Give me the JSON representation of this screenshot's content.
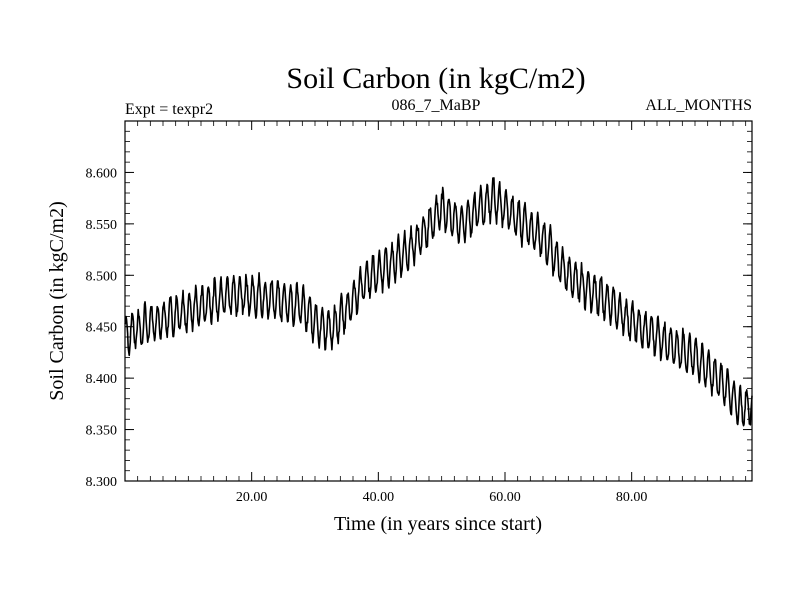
{
  "chart_data": {
    "type": "line",
    "title": "Soil Carbon (in kgC/m2)",
    "header_left": "Expt = texpr2",
    "header_center": "086_7_MaBP",
    "header_right": "ALL_MONTHS",
    "xlabel": "Time (in years since start)",
    "ylabel": "Soil Carbon (in kgC/m2)",
    "xlim": [
      0,
      99
    ],
    "ylim": [
      8.3,
      8.65
    ],
    "x_ticks": [
      20,
      40,
      60,
      80
    ],
    "x_tick_labels": [
      "20.00",
      "40.00",
      "60.00",
      "80.00"
    ],
    "y_ticks": [
      8.3,
      8.35,
      8.4,
      8.45,
      8.5,
      8.55,
      8.6
    ],
    "y_tick_labels": [
      "8.300",
      "8.350",
      "8.400",
      "8.450",
      "8.500",
      "8.550",
      "8.600"
    ],
    "grid": false,
    "line_color": "#000000",
    "series": [
      {
        "sampling": "monthly",
        "trend_x": [
          0,
          5,
          10,
          17,
          22,
          28,
          31,
          33,
          38,
          45,
          50,
          53,
          58,
          62,
          66,
          70,
          75,
          80,
          85,
          90,
          95,
          97,
          99
        ],
        "trend_y": [
          8.442,
          8.455,
          8.465,
          8.482,
          8.478,
          8.47,
          8.448,
          8.448,
          8.495,
          8.525,
          8.565,
          8.55,
          8.575,
          8.555,
          8.535,
          8.5,
          8.48,
          8.455,
          8.435,
          8.42,
          8.39,
          8.37,
          8.375
        ],
        "seasonal_amplitude": 0.018
      }
    ]
  }
}
